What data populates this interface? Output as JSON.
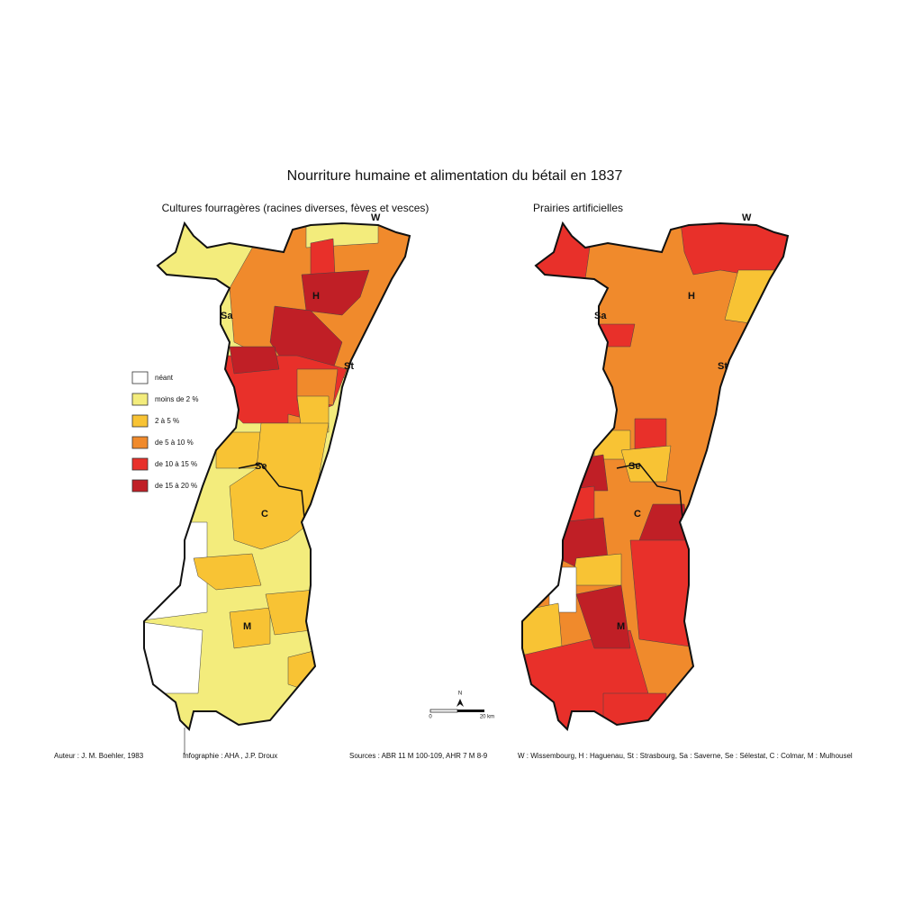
{
  "title": "Nourriture humaine et alimentation du bétail en 1837",
  "maps": [
    {
      "subtitle": "Cultures fourragères (racines diverses, fèves et vesces)",
      "labels": [
        "W",
        "H",
        "Sa",
        "St",
        "Se",
        "C",
        "M"
      ]
    },
    {
      "subtitle": "Prairies artificielles",
      "labels": [
        "W",
        "H",
        "Sa",
        "St",
        "Se",
        "C",
        "M"
      ]
    }
  ],
  "legend": [
    {
      "label": "néant",
      "color": "#ffffff"
    },
    {
      "label": "moins de 2 %",
      "color": "#f3ec7c"
    },
    {
      "label": "2 à 5 %",
      "color": "#f8c334"
    },
    {
      "label": "de 5 à 10 %",
      "color": "#f08a2c"
    },
    {
      "label": "de 10 à 15 %",
      "color": "#e8302a"
    },
    {
      "label": "de 15 à 20 %",
      "color": "#c01f26"
    }
  ],
  "scale": {
    "north": "N",
    "start": "0",
    "end": "20 km"
  },
  "footer": {
    "author": "Auteur : J. M. Boehler, 1983",
    "infographie": "Infographie : AHA , J.P. Droux",
    "sources": "Sources : ABR 11 M 100-109, AHR 7 M 8-9",
    "key": "W : Wissembourg, H : Haguenau, St : Strasbourg, Sa : Saverne, Se : Sélestat, C : Colmar, M : Mulhousel"
  }
}
